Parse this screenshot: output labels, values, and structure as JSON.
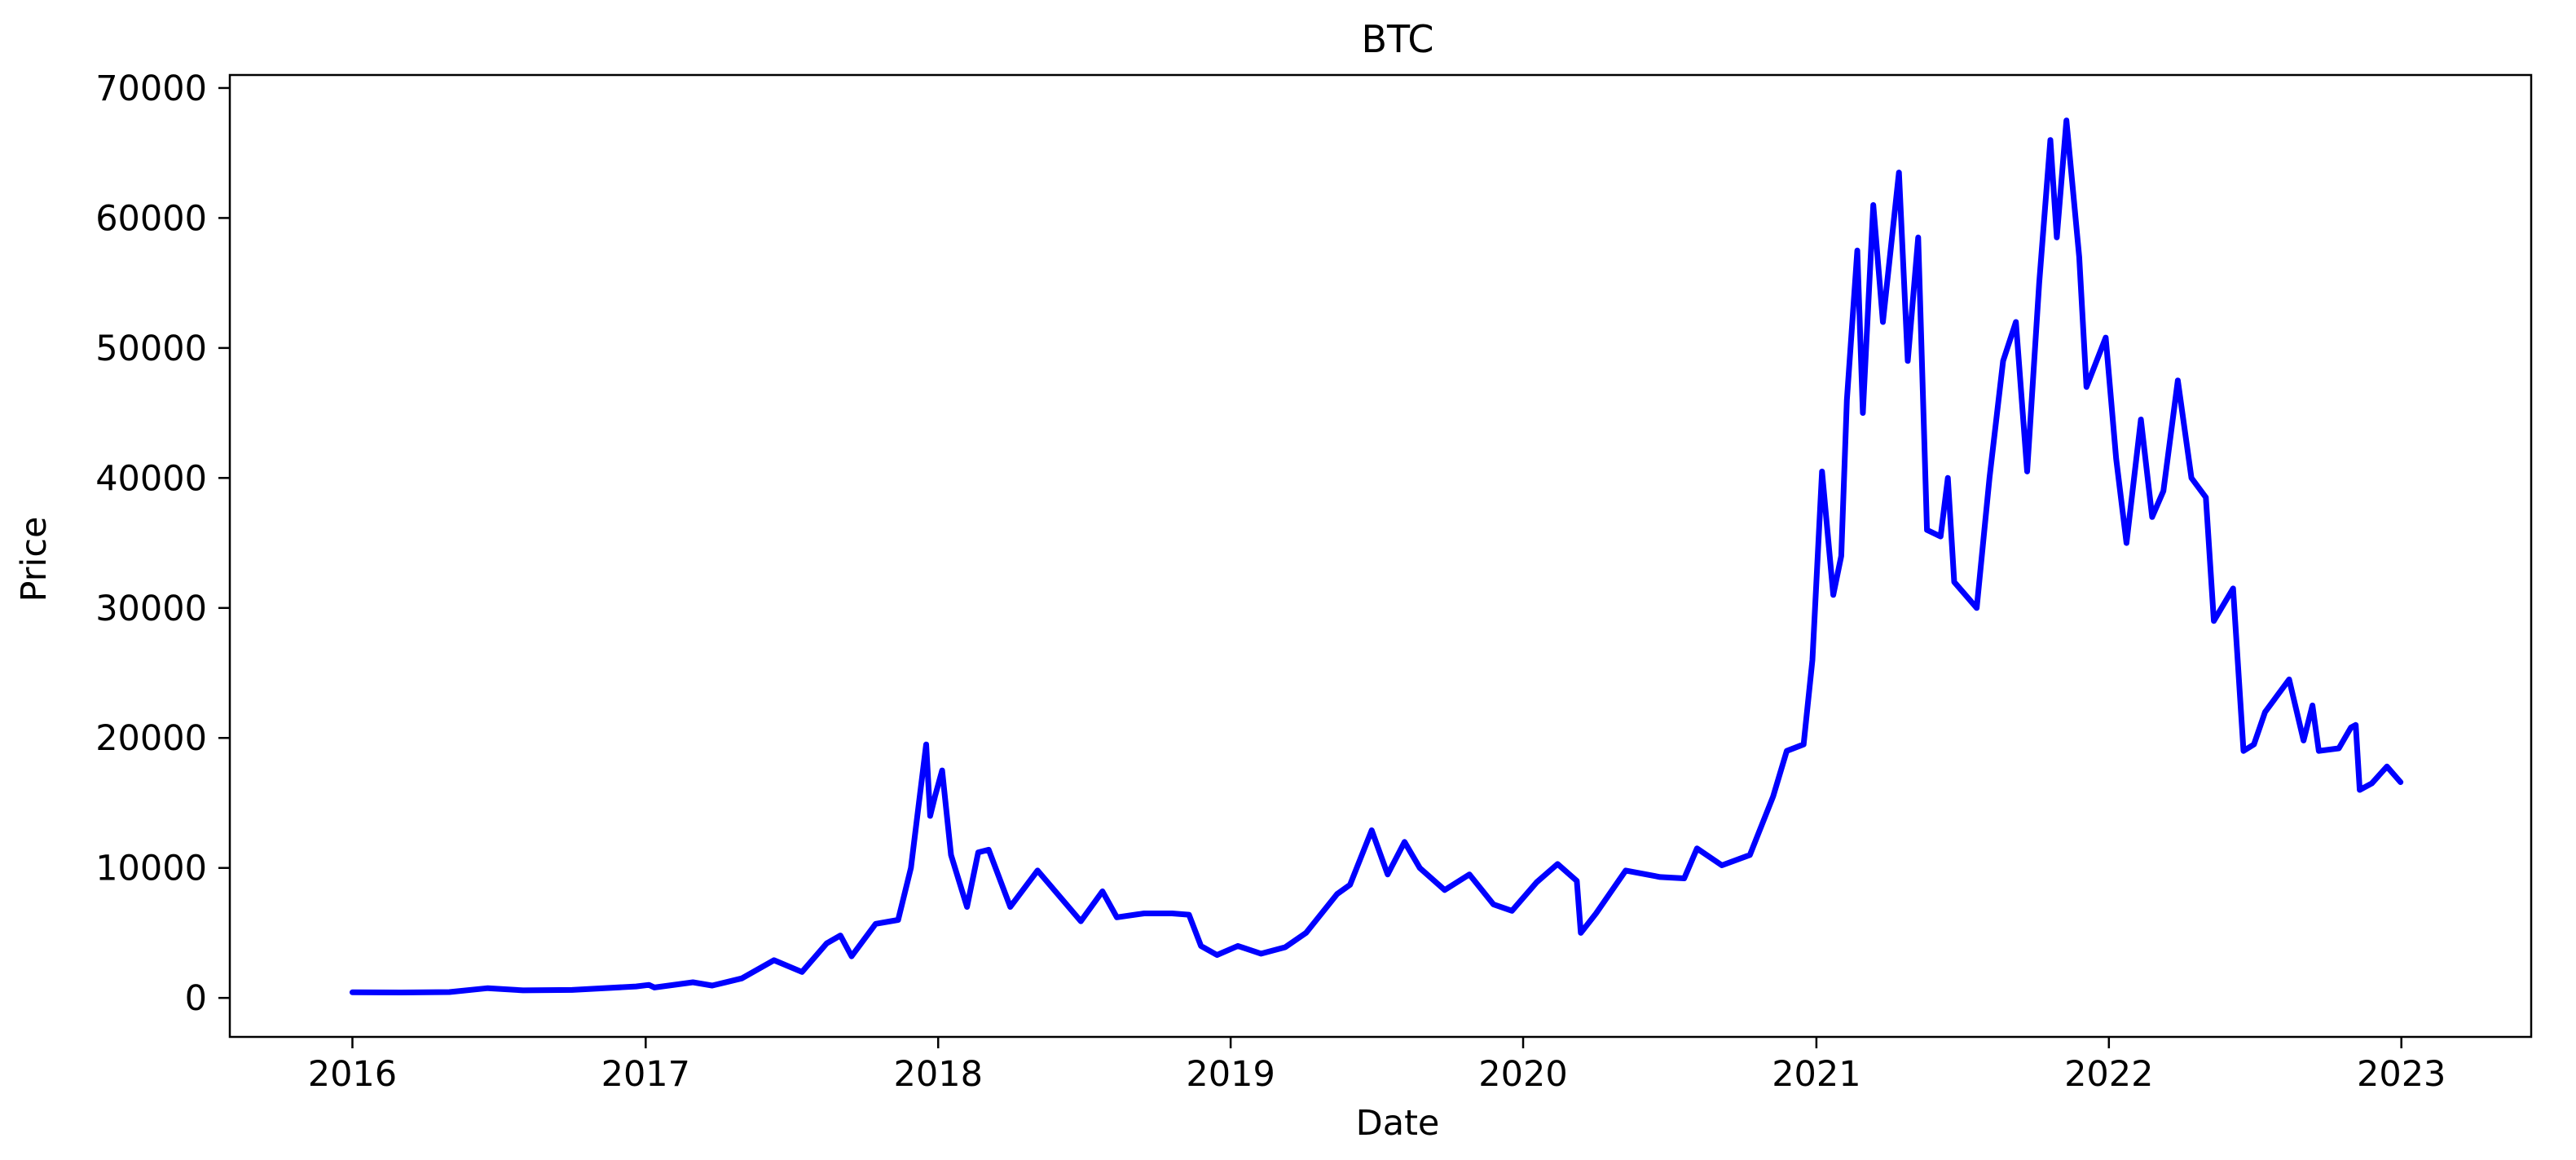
{
  "colors": {
    "line": "#0000ff",
    "axis": "#000000",
    "background": "#ffffff"
  },
  "chart_data": {
    "type": "line",
    "title": "BTC",
    "xlabel": "Date",
    "ylabel": "Price",
    "grid": false,
    "legend": "none",
    "xlim": [
      "2015-08-01",
      "2023-06-12"
    ],
    "ylim": [
      -3000,
      71000
    ],
    "xticks": [
      {
        "label": "2016",
        "date": "2016-01-01"
      },
      {
        "label": "2017",
        "date": "2017-01-01"
      },
      {
        "label": "2018",
        "date": "2018-01-01"
      },
      {
        "label": "2019",
        "date": "2019-01-01"
      },
      {
        "label": "2020",
        "date": "2020-01-01"
      },
      {
        "label": "2021",
        "date": "2021-01-01"
      },
      {
        "label": "2022",
        "date": "2022-01-01"
      },
      {
        "label": "2023",
        "date": "2023-01-01"
      }
    ],
    "yticks": [
      0,
      10000,
      20000,
      30000,
      40000,
      50000,
      60000,
      70000
    ],
    "series": [
      {
        "color": "#0000ff",
        "points": [
          [
            "2016-01-01",
            430
          ],
          [
            "2016-03-01",
            420
          ],
          [
            "2016-05-01",
            450
          ],
          [
            "2016-06-18",
            750
          ],
          [
            "2016-08-01",
            580
          ],
          [
            "2016-10-01",
            610
          ],
          [
            "2016-12-20",
            880
          ],
          [
            "2017-01-05",
            1000
          ],
          [
            "2017-01-12",
            800
          ],
          [
            "2017-03-01",
            1200
          ],
          [
            "2017-03-25",
            950
          ],
          [
            "2017-05-01",
            1500
          ],
          [
            "2017-06-10",
            2900
          ],
          [
            "2017-07-15",
            2000
          ],
          [
            "2017-08-15",
            4200
          ],
          [
            "2017-09-01",
            4800
          ],
          [
            "2017-09-15",
            3200
          ],
          [
            "2017-10-15",
            5700
          ],
          [
            "2017-11-12",
            6000
          ],
          [
            "2017-11-28",
            10000
          ],
          [
            "2017-12-08",
            15000
          ],
          [
            "2017-12-17",
            19500
          ],
          [
            "2017-12-22",
            14000
          ],
          [
            "2017-12-28",
            15500
          ],
          [
            "2018-01-06",
            17500
          ],
          [
            "2018-01-17",
            11000
          ],
          [
            "2018-02-06",
            7000
          ],
          [
            "2018-02-20",
            11200
          ],
          [
            "2018-03-05",
            11400
          ],
          [
            "2018-04-01",
            7000
          ],
          [
            "2018-05-05",
            9800
          ],
          [
            "2018-06-28",
            5900
          ],
          [
            "2018-07-25",
            8200
          ],
          [
            "2018-08-12",
            6200
          ],
          [
            "2018-09-15",
            6500
          ],
          [
            "2018-10-20",
            6500
          ],
          [
            "2018-11-10",
            6400
          ],
          [
            "2018-11-25",
            4000
          ],
          [
            "2018-12-15",
            3300
          ],
          [
            "2019-01-10",
            4000
          ],
          [
            "2019-02-08",
            3400
          ],
          [
            "2019-03-10",
            3900
          ],
          [
            "2019-04-05",
            5000
          ],
          [
            "2019-05-14",
            8000
          ],
          [
            "2019-05-30",
            8700
          ],
          [
            "2019-06-26",
            12900
          ],
          [
            "2019-07-16",
            9500
          ],
          [
            "2019-08-06",
            12000
          ],
          [
            "2019-08-25",
            10000
          ],
          [
            "2019-09-25",
            8300
          ],
          [
            "2019-10-26",
            9500
          ],
          [
            "2019-11-25",
            7200
          ],
          [
            "2019-12-18",
            6700
          ],
          [
            "2020-01-18",
            8900
          ],
          [
            "2020-02-13",
            10300
          ],
          [
            "2020-03-08",
            9000
          ],
          [
            "2020-03-13",
            5000
          ],
          [
            "2020-04-01",
            6500
          ],
          [
            "2020-05-08",
            9800
          ],
          [
            "2020-06-20",
            9300
          ],
          [
            "2020-07-20",
            9200
          ],
          [
            "2020-08-05",
            11500
          ],
          [
            "2020-09-05",
            10200
          ],
          [
            "2020-10-10",
            11000
          ],
          [
            "2020-11-08",
            15500
          ],
          [
            "2020-11-25",
            19000
          ],
          [
            "2020-12-16",
            19500
          ],
          [
            "2020-12-27",
            26000
          ],
          [
            "2021-01-08",
            40500
          ],
          [
            "2021-01-22",
            31000
          ],
          [
            "2021-02-01",
            34000
          ],
          [
            "2021-02-08",
            46000
          ],
          [
            "2021-02-21",
            57500
          ],
          [
            "2021-02-28",
            45000
          ],
          [
            "2021-03-13",
            61000
          ],
          [
            "2021-03-25",
            52000
          ],
          [
            "2021-04-14",
            63500
          ],
          [
            "2021-04-25",
            49000
          ],
          [
            "2021-05-08",
            58500
          ],
          [
            "2021-05-19",
            36000
          ],
          [
            "2021-06-05",
            35500
          ],
          [
            "2021-06-14",
            40000
          ],
          [
            "2021-06-22",
            32000
          ],
          [
            "2021-07-20",
            30000
          ],
          [
            "2021-08-05",
            40000
          ],
          [
            "2021-08-22",
            49000
          ],
          [
            "2021-09-07",
            52000
          ],
          [
            "2021-09-21",
            40500
          ],
          [
            "2021-10-06",
            55000
          ],
          [
            "2021-10-20",
            66000
          ],
          [
            "2021-10-28",
            58500
          ],
          [
            "2021-11-09",
            67500
          ],
          [
            "2021-11-25",
            57000
          ],
          [
            "2021-12-04",
            47000
          ],
          [
            "2021-12-28",
            50800
          ],
          [
            "2022-01-10",
            41500
          ],
          [
            "2022-01-23",
            35000
          ],
          [
            "2022-02-10",
            44500
          ],
          [
            "2022-02-24",
            37000
          ],
          [
            "2022-03-10",
            39000
          ],
          [
            "2022-03-28",
            47500
          ],
          [
            "2022-04-14",
            40000
          ],
          [
            "2022-05-02",
            38500
          ],
          [
            "2022-05-12",
            29000
          ],
          [
            "2022-06-05",
            31500
          ],
          [
            "2022-06-18",
            19000
          ],
          [
            "2022-07-01",
            19500
          ],
          [
            "2022-07-15",
            22000
          ],
          [
            "2022-08-14",
            24500
          ],
          [
            "2022-09-01",
            19800
          ],
          [
            "2022-09-12",
            22500
          ],
          [
            "2022-09-20",
            19000
          ],
          [
            "2022-10-15",
            19200
          ],
          [
            "2022-10-30",
            20800
          ],
          [
            "2022-11-05",
            21000
          ],
          [
            "2022-11-10",
            16000
          ],
          [
            "2022-11-25",
            16500
          ],
          [
            "2022-12-14",
            17800
          ],
          [
            "2022-12-31",
            16600
          ]
        ]
      }
    ]
  }
}
